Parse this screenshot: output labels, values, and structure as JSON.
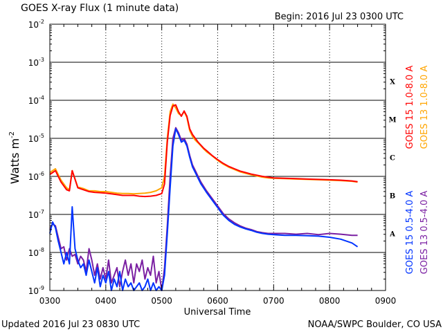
{
  "chart_data": {
    "type": "line",
    "title": "GOES X-ray Flux (1 minute data)",
    "begin_label": "Begin: 2016 Jul 23 0300 UTC",
    "xlabel": "Universal Time",
    "ylabel": "Watts m",
    "ylabel_sup": "-2",
    "x_range_hours": [
      3,
      9
    ],
    "y_range_log10": [
      -9,
      -2
    ],
    "x_ticks": [
      {
        "t": 3,
        "label": "0300"
      },
      {
        "t": 4,
        "label": "0400"
      },
      {
        "t": 5,
        "label": "0500"
      },
      {
        "t": 6,
        "label": "0600"
      },
      {
        "t": 7,
        "label": "0700"
      },
      {
        "t": 8,
        "label": "0800"
      },
      {
        "t": 9,
        "label": "0900"
      }
    ],
    "y_ticks": [
      {
        "exp": -2,
        "base": "10",
        "sup": "-2"
      },
      {
        "exp": -3,
        "base": "10",
        "sup": "-3"
      },
      {
        "exp": -4,
        "base": "10",
        "sup": "-4"
      },
      {
        "exp": -5,
        "base": "10",
        "sup": "-5"
      },
      {
        "exp": -6,
        "base": "10",
        "sup": "-6"
      },
      {
        "exp": -7,
        "base": "10",
        "sup": "-7"
      },
      {
        "exp": -8,
        "base": "10",
        "sup": "-8"
      },
      {
        "exp": -9,
        "base": "10",
        "sup": "-9"
      }
    ],
    "flare_classes": [
      {
        "label": "X",
        "exp": -3.5
      },
      {
        "label": "M",
        "exp": -4.5
      },
      {
        "label": "C",
        "exp": -5.5
      },
      {
        "label": "B",
        "exp": -6.5
      },
      {
        "label": "A",
        "exp": -7.5
      }
    ],
    "gridlines_log10": [
      -8,
      -7,
      -6,
      -5,
      -4,
      -3
    ],
    "series": [
      {
        "name": "GOES 13 1.0-8.0 A",
        "color": "#ffa500",
        "time_hours": [
          3.0,
          3.05,
          3.1,
          3.15,
          3.2,
          3.25,
          3.3,
          3.35,
          3.4,
          3.5,
          3.6,
          3.7,
          3.8,
          3.9,
          4.0,
          4.1,
          4.2,
          4.3,
          4.4,
          4.5,
          4.6,
          4.7,
          4.8,
          4.9,
          5.0,
          5.05,
          5.1,
          5.15,
          5.2,
          5.25,
          5.3,
          5.35,
          5.4,
          5.45,
          5.5,
          5.55,
          5.6,
          5.65,
          5.7,
          5.75,
          5.8,
          5.9,
          6.0,
          6.1,
          6.2,
          6.3,
          6.4,
          6.5,
          6.6,
          6.7,
          6.8,
          6.9,
          7.0,
          7.2,
          7.4,
          7.6,
          7.8,
          8.0,
          8.2,
          8.4,
          8.5
        ],
        "log10_flux": [
          -5.9,
          -5.85,
          -5.8,
          -5.95,
          -6.1,
          -6.2,
          -6.3,
          -6.35,
          -5.85,
          -6.28,
          -6.32,
          -6.38,
          -6.38,
          -6.4,
          -6.4,
          -6.42,
          -6.44,
          -6.45,
          -6.45,
          -6.46,
          -6.45,
          -6.44,
          -6.42,
          -6.38,
          -6.3,
          -6.0,
          -5.0,
          -4.3,
          -4.1,
          -4.2,
          -4.35,
          -4.4,
          -4.3,
          -4.45,
          -4.8,
          -4.95,
          -5.05,
          -5.12,
          -5.2,
          -5.28,
          -5.35,
          -5.46,
          -5.58,
          -5.68,
          -5.76,
          -5.82,
          -5.88,
          -5.92,
          -5.96,
          -5.99,
          -6.02,
          -6.04,
          -6.05,
          -6.06,
          -6.07,
          -6.08,
          -6.09,
          -6.1,
          -6.11,
          -6.13,
          -6.15
        ]
      },
      {
        "name": "GOES 15 1.0-8.0 A",
        "color": "#ff0000",
        "time_hours": [
          3.0,
          3.05,
          3.1,
          3.15,
          3.2,
          3.25,
          3.3,
          3.35,
          3.4,
          3.5,
          3.6,
          3.7,
          3.8,
          3.9,
          4.0,
          4.1,
          4.2,
          4.3,
          4.4,
          4.5,
          4.6,
          4.7,
          4.8,
          4.9,
          5.0,
          5.05,
          5.1,
          5.15,
          5.2,
          5.25,
          5.3,
          5.35,
          5.4,
          5.45,
          5.5,
          5.55,
          5.6,
          5.65,
          5.7,
          5.75,
          5.8,
          5.9,
          6.0,
          6.1,
          6.2,
          6.3,
          6.4,
          6.5,
          6.6,
          6.7,
          6.8,
          6.9,
          7.0,
          7.2,
          7.4,
          7.6,
          7.8,
          8.0,
          8.2,
          8.4,
          8.5
        ],
        "log10_flux": [
          -5.95,
          -5.9,
          -5.85,
          -6.0,
          -6.15,
          -6.25,
          -6.35,
          -6.38,
          -5.85,
          -6.3,
          -6.35,
          -6.4,
          -6.42,
          -6.43,
          -6.44,
          -6.46,
          -6.48,
          -6.5,
          -6.5,
          -6.5,
          -6.52,
          -6.53,
          -6.52,
          -6.5,
          -6.45,
          -6.2,
          -5.1,
          -4.4,
          -4.15,
          -4.12,
          -4.3,
          -4.42,
          -4.28,
          -4.42,
          -4.75,
          -4.9,
          -5.0,
          -5.1,
          -5.18,
          -5.26,
          -5.32,
          -5.45,
          -5.56,
          -5.66,
          -5.74,
          -5.8,
          -5.86,
          -5.9,
          -5.94,
          -5.97,
          -6.0,
          -6.02,
          -6.04,
          -6.05,
          -6.06,
          -6.07,
          -6.08,
          -6.09,
          -6.1,
          -6.12,
          -6.14
        ]
      },
      {
        "name": "GOES 13 0.5-4.0 A",
        "color": "#7a1fa2",
        "time_hours": [
          3.0,
          3.05,
          3.1,
          3.15,
          3.2,
          3.25,
          3.3,
          3.35,
          3.4,
          3.45,
          3.5,
          3.55,
          3.6,
          3.65,
          3.7,
          3.75,
          3.8,
          3.85,
          3.9,
          3.95,
          4.0,
          4.05,
          4.1,
          4.15,
          4.2,
          4.25,
          4.3,
          4.35,
          4.4,
          4.45,
          4.5,
          4.55,
          4.6,
          4.65,
          4.7,
          4.75,
          4.8,
          4.85,
          4.9,
          4.95,
          5.0,
          5.05,
          5.1,
          5.15,
          5.2,
          5.25,
          5.3,
          5.35,
          5.4,
          5.45,
          5.5,
          5.55,
          5.6,
          5.65,
          5.7,
          5.8,
          5.9,
          6.0,
          6.1,
          6.2,
          6.3,
          6.4,
          6.5,
          6.6,
          6.7,
          6.8,
          6.9,
          7.0,
          7.2,
          7.4,
          7.6,
          7.8,
          8.0,
          8.2,
          8.4,
          8.5
        ],
        "log10_flux": [
          -7.4,
          -7.25,
          -7.3,
          -7.6,
          -7.9,
          -7.85,
          -8.2,
          -7.9,
          -8.1,
          -8.05,
          -8.3,
          -8.1,
          -8.2,
          -8.5,
          -7.9,
          -8.2,
          -8.6,
          -8.3,
          -8.7,
          -8.4,
          -8.7,
          -8.2,
          -8.8,
          -8.6,
          -8.4,
          -8.9,
          -8.5,
          -8.2,
          -8.6,
          -8.3,
          -8.8,
          -8.3,
          -8.5,
          -8.2,
          -8.7,
          -8.4,
          -8.6,
          -8.1,
          -8.8,
          -8.5,
          -9.0,
          -8.4,
          -7.3,
          -6.0,
          -5.0,
          -4.72,
          -4.85,
          -5.05,
          -5.0,
          -5.15,
          -5.45,
          -5.7,
          -5.85,
          -6.0,
          -6.15,
          -6.38,
          -6.58,
          -6.78,
          -6.98,
          -7.12,
          -7.22,
          -7.3,
          -7.36,
          -7.4,
          -7.45,
          -7.48,
          -7.5,
          -7.5,
          -7.5,
          -7.52,
          -7.5,
          -7.53,
          -7.5,
          -7.52,
          -7.55,
          -7.55
        ]
      },
      {
        "name": "GOES 15 0.5-4.0 A",
        "color": "#0033ff",
        "time_hours": [
          3.0,
          3.05,
          3.1,
          3.15,
          3.2,
          3.25,
          3.3,
          3.35,
          3.4,
          3.45,
          3.5,
          3.55,
          3.6,
          3.65,
          3.7,
          3.75,
          3.8,
          3.85,
          3.9,
          3.95,
          4.0,
          4.05,
          4.1,
          4.15,
          4.2,
          4.25,
          4.3,
          4.35,
          4.4,
          4.45,
          4.5,
          4.55,
          4.6,
          4.65,
          4.7,
          4.75,
          4.8,
          4.85,
          4.9,
          4.95,
          5.0,
          5.05,
          5.1,
          5.15,
          5.2,
          5.25,
          5.3,
          5.35,
          5.4,
          5.45,
          5.5,
          5.55,
          5.6,
          5.65,
          5.7,
          5.8,
          5.9,
          6.0,
          6.1,
          6.2,
          6.3,
          6.4,
          6.5,
          6.6,
          6.7,
          6.8,
          6.9,
          7.0,
          7.2,
          7.4,
          7.6,
          7.8,
          8.0,
          8.2,
          8.4,
          8.5
        ],
        "log10_flux": [
          -7.5,
          -7.2,
          -7.35,
          -7.7,
          -8.0,
          -8.3,
          -8.0,
          -8.3,
          -6.8,
          -7.9,
          -8.2,
          -8.4,
          -8.3,
          -8.6,
          -8.2,
          -8.5,
          -8.8,
          -8.4,
          -8.9,
          -8.6,
          -8.8,
          -8.5,
          -9.0,
          -8.7,
          -8.9,
          -8.5,
          -9.0,
          -8.7,
          -8.9,
          -8.8,
          -9.0,
          -8.9,
          -8.8,
          -9.0,
          -8.9,
          -8.7,
          -9.0,
          -8.8,
          -9.0,
          -8.9,
          -9.0,
          -8.6,
          -7.5,
          -6.3,
          -5.2,
          -4.75,
          -4.9,
          -5.1,
          -5.05,
          -5.2,
          -5.5,
          -5.75,
          -5.9,
          -6.05,
          -6.2,
          -6.42,
          -6.62,
          -6.82,
          -7.02,
          -7.16,
          -7.26,
          -7.33,
          -7.38,
          -7.42,
          -7.47,
          -7.5,
          -7.52,
          -7.53,
          -7.55,
          -7.55,
          -7.56,
          -7.57,
          -7.6,
          -7.65,
          -7.75,
          -7.85
        ]
      }
    ]
  },
  "footer": {
    "updated": "Updated 2016 Jul 23 0830 UTC",
    "credit": "NOAA/SWPC Boulder, CO USA"
  }
}
